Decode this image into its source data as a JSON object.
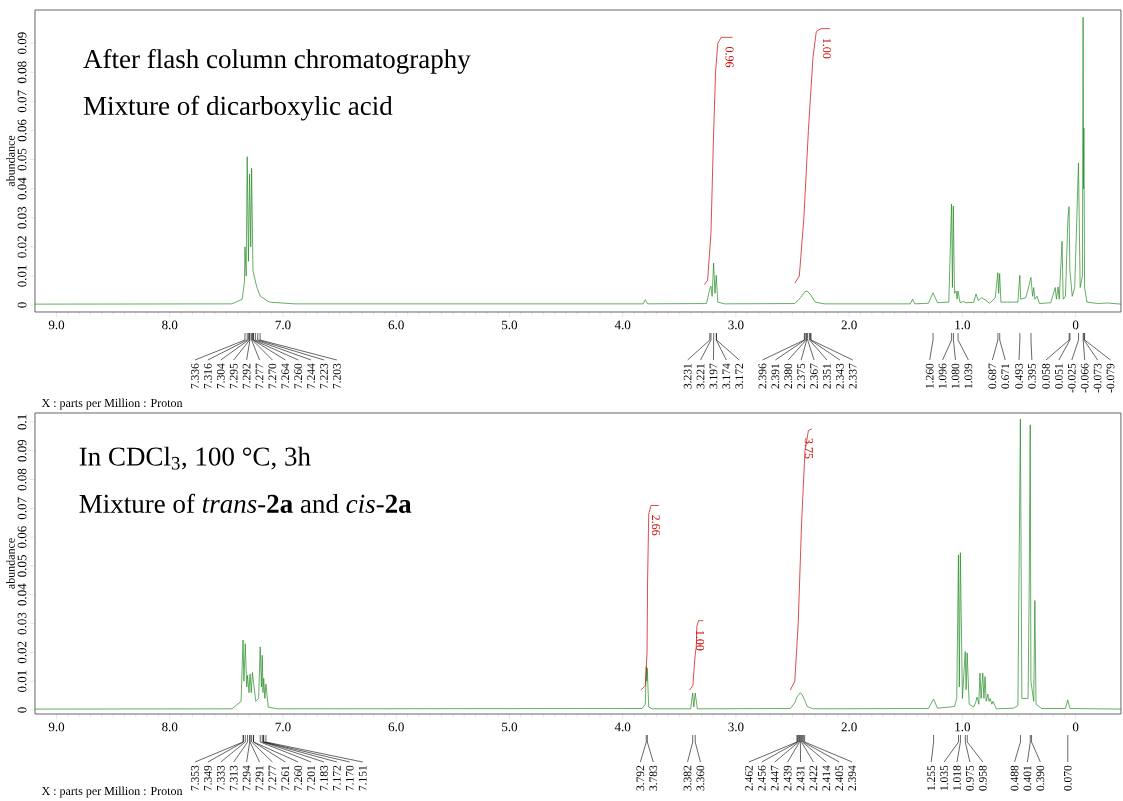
{
  "chart_data": [
    {
      "type": "line",
      "title": "After flash column chromatography",
      "subtitle": "Mixture of dicarboxylic acid",
      "xlabel": "X : parts per Million : Proton",
      "ylabel": "abundance",
      "xlim": [
        9.19,
        -0.4
      ],
      "ylim": [
        -0.0024,
        0.1014
      ],
      "xticks": [
        {
          "value": 9,
          "label": "9.0"
        },
        {
          "value": 8,
          "label": "8.0"
        },
        {
          "value": 7,
          "label": "7.0"
        },
        {
          "value": 6,
          "label": "6.0"
        },
        {
          "value": 5,
          "label": "5.0"
        },
        {
          "value": 4,
          "label": "4.0"
        },
        {
          "value": 3,
          "label": "3.0"
        },
        {
          "value": 2,
          "label": "2.0"
        },
        {
          "value": 1,
          "label": "1.0"
        },
        0
      ],
      "yticks": [
        0,
        0.01,
        0.02,
        0.03,
        0.04,
        0.05,
        0.06,
        0.07,
        0.08,
        0.09
      ],
      "series": [
        {
          "color": "#228b22",
          "x": [
            9.19,
            7.45,
            7.36,
            7.34,
            7.336,
            7.325,
            7.316,
            7.305,
            7.295,
            7.285,
            7.277,
            7.265,
            7.255,
            7.23,
            7.2,
            7.12,
            6.9,
            3.82,
            3.8,
            3.78,
            3.26,
            3.231,
            3.221,
            3.21,
            3.197,
            3.185,
            3.174,
            3.16,
            3.1,
            2.48,
            2.43,
            2.39,
            2.37,
            2.34,
            2.3,
            2.22,
            1.46,
            1.44,
            1.42,
            1.3,
            1.26,
            1.22,
            1.12,
            1.096,
            1.088,
            1.08,
            1.07,
            1.055,
            1.047,
            1.039,
            1.02,
            0.99,
            0.97,
            0.9,
            0.88,
            0.86,
            0.83,
            0.8,
            0.76,
            0.71,
            0.687,
            0.68,
            0.671,
            0.66,
            0.51,
            0.493,
            0.485,
            0.44,
            0.41,
            0.395,
            0.38,
            0.37,
            0.36,
            0.34,
            0.32,
            0.22,
            0.18,
            0.17,
            0.155,
            0.145,
            0.12,
            0.11,
            0.09,
            0.068,
            0.058,
            0.051,
            0.03,
            0.008,
            -0.025,
            -0.04,
            -0.06,
            -0.066,
            -0.07,
            -0.073,
            -0.079,
            -0.1,
            -0.2,
            -0.28,
            -0.4
          ],
          "values": [
            0.0003,
            0.0004,
            0.002,
            0.008,
            0.02,
            0.01,
            0.051,
            0.015,
            0.045,
            0.02,
            0.047,
            0.012,
            0.01,
            0.006,
            0.003,
            0.001,
            0.0004,
            0.0004,
            0.0018,
            0.0004,
            0.0005,
            0.0055,
            0.0065,
            0.003,
            0.0144,
            0.004,
            0.0102,
            0.001,
            0.0004,
            0.0005,
            0.0025,
            0.0046,
            0.0048,
            0.0035,
            0.001,
            0.0004,
            0.0004,
            0.002,
            0.0004,
            0.0006,
            0.0042,
            0.0008,
            0.001,
            0.0347,
            0.006,
            0.034,
            0.004,
            0.0048,
            0.002,
            0.0048,
            0.0008,
            0.0012,
            0.0008,
            0.0009,
            0.0038,
            0.0015,
            0.0025,
            0.0018,
            0.0006,
            0.0025,
            0.0111,
            0.004,
            0.0108,
            0.001,
            0.001,
            0.0102,
            0.002,
            0.0025,
            0.007,
            0.0095,
            0.003,
            0.006,
            0.002,
            0.003,
            0.0005,
            0.0008,
            0.006,
            0.002,
            0.0062,
            0.002,
            0.0219,
            0.002,
            0.003,
            0.03,
            0.0338,
            0.012,
            0.003,
            0.006,
            0.0488,
            0.006,
            0.01,
            0.0989,
            0.04,
            0.0608,
            0.006,
            0.001,
            0.0005,
            0.0007,
            0.0003
          ]
        },
        {
          "color": "#cc0000",
          "x": [
            3.28,
            3.25,
            3.22,
            3.2,
            3.18,
            3.16,
            3.13,
            3.03
          ],
          "values": [
            0.007,
            0.0085,
            0.025,
            0.055,
            0.08,
            0.09,
            0.092,
            0.092
          ]
        },
        {
          "color": "#cc0000",
          "x": [
            2.48,
            2.44,
            2.4,
            2.36,
            2.32,
            2.29,
            2.25,
            2.17
          ],
          "values": [
            0.0075,
            0.01,
            0.03,
            0.06,
            0.085,
            0.094,
            0.095,
            0.095
          ]
        }
      ],
      "annotations": [
        "0.96",
        "1.00",
        {
          "text": "7.336",
          "x": 7.336
        },
        {
          "text": "7.316",
          "x": 7.316
        },
        {
          "text": "7.304",
          "x": 7.304
        },
        {
          "text": "7.295",
          "x": 7.295
        },
        {
          "text": "7.292",
          "x": 7.292
        },
        {
          "text": "7.277",
          "x": 7.277
        },
        {
          "text": "7.270",
          "x": 7.27
        },
        {
          "text": "7.264",
          "x": 7.264
        },
        {
          "text": "7.260",
          "x": 7.26
        },
        {
          "text": "7.244",
          "x": 7.244
        },
        {
          "text": "7.223",
          "x": 7.223
        },
        {
          "text": "7.203",
          "x": 7.203
        },
        {
          "text": "3.231",
          "x": 3.231
        },
        {
          "text": "3.221",
          "x": 3.221
        },
        {
          "text": "3.197",
          "x": 3.197
        },
        {
          "text": "3.174",
          "x": 3.174
        },
        {
          "text": "3.172",
          "x": 3.172
        },
        {
          "text": "2.396",
          "x": 2.396
        },
        {
          "text": "2.391",
          "x": 2.391
        },
        {
          "text": "2.380",
          "x": 2.38
        },
        {
          "text": "2.375",
          "x": 2.375
        },
        {
          "text": "2.367",
          "x": 2.367
        },
        {
          "text": "2.351",
          "x": 2.351
        },
        {
          "text": "2.343",
          "x": 2.343
        },
        {
          "text": "2.337",
          "x": 2.337
        },
        {
          "text": "1.260",
          "x": 1.26
        },
        {
          "text": "1.096",
          "x": 1.096
        },
        {
          "text": "1.080",
          "x": 1.08
        },
        {
          "text": "1.039",
          "x": 1.039
        },
        {
          "text": "0.687",
          "x": 0.687
        },
        {
          "text": "0.671",
          "x": 0.671
        },
        {
          "text": "0.493",
          "x": 0.493
        },
        {
          "text": "0.395",
          "x": 0.395
        },
        {
          "text": "0.058",
          "x": 0.058
        },
        {
          "text": "0.051",
          "x": 0.051
        },
        {
          "text": "-0.025",
          "x": -0.025
        },
        {
          "text": "-0.066",
          "x": -0.066
        },
        {
          "text": "-0.073",
          "x": -0.073
        },
        {
          "text": "-0.079",
          "x": -0.079
        }
      ]
    },
    {
      "type": "line",
      "title": "In CDCl$_{3}$, 100 °C, 3h",
      "subtitle": "Mixture of *trans*-**2a** and *cis*-**2a**",
      "xlabel": "X : parts per Million : Proton",
      "ylabel": "abundance",
      "xlim": [
        9.19,
        -0.4
      ],
      "ylim": [
        -0.0014,
        0.1031
      ],
      "xticks": [
        {
          "value": 9,
          "label": "9.0"
        },
        {
          "value": 8,
          "label": "8.0"
        },
        {
          "value": 7,
          "label": "7.0"
        },
        {
          "value": 6,
          "label": "6.0"
        },
        {
          "value": 5,
          "label": "5.0"
        },
        {
          "value": 4,
          "label": "4.0"
        },
        {
          "value": 3,
          "label": "3.0"
        },
        {
          "value": 2,
          "label": "2.0"
        },
        {
          "value": 1,
          "label": "1.0"
        },
        0
      ],
      "yticks": [
        0,
        0.01,
        0.02,
        0.03,
        0.04,
        0.05,
        0.06,
        0.07,
        0.08,
        0.09,
        0.1
      ],
      "series": [
        {
          "color": "#228b22",
          "x": [
            9.19,
            7.45,
            7.37,
            7.353,
            7.345,
            7.333,
            7.32,
            7.313,
            7.3,
            7.291,
            7.28,
            7.27,
            7.261,
            7.24,
            7.215,
            7.201,
            7.19,
            7.183,
            7.177,
            7.17,
            7.16,
            7.151,
            7.13,
            7.05,
            3.83,
            3.8,
            3.792,
            3.787,
            3.783,
            3.77,
            3.74,
            3.4,
            3.382,
            3.372,
            3.36,
            3.34,
            2.52,
            2.48,
            2.462,
            2.447,
            2.431,
            2.414,
            2.394,
            2.37,
            2.32,
            1.3,
            1.255,
            1.22,
            1.07,
            1.05,
            1.035,
            1.027,
            1.018,
            1.0,
            0.975,
            0.967,
            0.958,
            0.94,
            0.9,
            0.88,
            0.87,
            0.855,
            0.845,
            0.835,
            0.82,
            0.81,
            0.8,
            0.79,
            0.775,
            0.765,
            0.755,
            0.74,
            0.73,
            0.7,
            0.55,
            0.51,
            0.488,
            0.475,
            0.42,
            0.41,
            0.401,
            0.395,
            0.37,
            0.36,
            0.35,
            0.3,
            0.09,
            0.07,
            0.05,
            -0.4
          ],
          "values": [
            0.0003,
            0.0004,
            0.003,
            0.0243,
            0.01,
            0.023,
            0.008,
            0.012,
            0.006,
            0.0125,
            0.006,
            0.013,
            0.01,
            0.003,
            0.004,
            0.0219,
            0.008,
            0.019,
            0.006,
            0.011,
            0.004,
            0.009,
            0.001,
            0.0004,
            0.0005,
            0.002,
            0.015,
            0.01,
            0.0145,
            0.001,
            0.0004,
            0.0004,
            0.0059,
            0.001,
            0.0059,
            0.0004,
            0.0005,
            0.0025,
            0.0045,
            0.0052,
            0.006,
            0.0052,
            0.0035,
            0.0012,
            0.0004,
            0.0005,
            0.0038,
            0.0006,
            0.0012,
            0.004,
            0.0538,
            0.008,
            0.0546,
            0.004,
            0.0203,
            0.007,
            0.0198,
            0.002,
            0.001,
            0.003,
            0.0045,
            0.002,
            0.0128,
            0.004,
            0.0128,
            0.004,
            0.0116,
            0.003,
            0.0055,
            0.003,
            0.004,
            0.002,
            0.003,
            0.0004,
            0.0006,
            0.0015,
            0.101,
            0.004,
            0.004,
            0.043,
            0.099,
            0.01,
            0.003,
            0.038,
            0.002,
            0.0005,
            0.0005,
            0.0035,
            0.0005,
            0.0003
          ]
        },
        {
          "color": "#cc0000",
          "x": [
            3.84,
            3.8,
            3.785,
            3.78,
            3.77,
            3.75,
            3.68
          ],
          "values": [
            0.0069,
            0.0085,
            0.02,
            0.045,
            0.068,
            0.071,
            0.071
          ]
        },
        {
          "color": "#cc0000",
          "x": [
            3.41,
            3.38,
            3.37,
            3.36,
            3.35,
            3.345,
            3.33,
            3.29
          ],
          "values": [
            0.0069,
            0.0085,
            0.014,
            0.019,
            0.022,
            0.029,
            0.031,
            0.031
          ]
        },
        {
          "color": "#cc0000",
          "x": [
            2.52,
            2.48,
            2.45,
            2.42,
            2.39,
            2.36,
            2.33
          ],
          "values": [
            0.0069,
            0.01,
            0.03,
            0.065,
            0.09,
            0.097,
            0.0976
          ]
        }
      ],
      "annotations": [
        "2.66",
        "1.00",
        "3.75",
        {
          "text": "7.353",
          "x": 7.353
        },
        {
          "text": "7.349",
          "x": 7.349
        },
        {
          "text": "7.333",
          "x": 7.333
        },
        {
          "text": "7.313",
          "x": 7.313
        },
        {
          "text": "7.294",
          "x": 7.294
        },
        {
          "text": "7.291",
          "x": 7.291
        },
        {
          "text": "7.277",
          "x": 7.277
        },
        {
          "text": "7.261",
          "x": 7.261
        },
        {
          "text": "7.260",
          "x": 7.26
        },
        {
          "text": "7.201",
          "x": 7.201
        },
        {
          "text": "7.183",
          "x": 7.183
        },
        {
          "text": "7.172",
          "x": 7.172
        },
        {
          "text": "7.170",
          "x": 7.17
        },
        {
          "text": "7.151",
          "x": 7.151
        },
        {
          "text": "3.792",
          "x": 3.792
        },
        {
          "text": "3.783",
          "x": 3.783
        },
        {
          "text": "3.382",
          "x": 3.382
        },
        {
          "text": "3.360",
          "x": 3.36
        },
        {
          "text": "2.462",
          "x": 2.462
        },
        {
          "text": "2.456",
          "x": 2.456
        },
        {
          "text": "2.447",
          "x": 2.447
        },
        {
          "text": "2.439",
          "x": 2.439
        },
        {
          "text": "2.431",
          "x": 2.431
        },
        {
          "text": "2.422",
          "x": 2.422
        },
        {
          "text": "2.414",
          "x": 2.414
        },
        {
          "text": "2.405",
          "x": 2.405
        },
        {
          "text": "2.394",
          "x": 2.394
        },
        {
          "text": "1.255",
          "x": 1.255
        },
        {
          "text": "1.035",
          "x": 1.035
        },
        {
          "text": "1.018",
          "x": 1.018
        },
        {
          "text": "0.975",
          "x": 0.975
        },
        {
          "text": "0.958",
          "x": 0.958
        },
        {
          "text": "0.488",
          "x": 0.488
        },
        {
          "text": "0.401",
          "x": 0.401
        },
        {
          "text": "0.390",
          "x": 0.39
        },
        {
          "text": "0.070",
          "x": 0.07
        }
      ]
    }
  ]
}
